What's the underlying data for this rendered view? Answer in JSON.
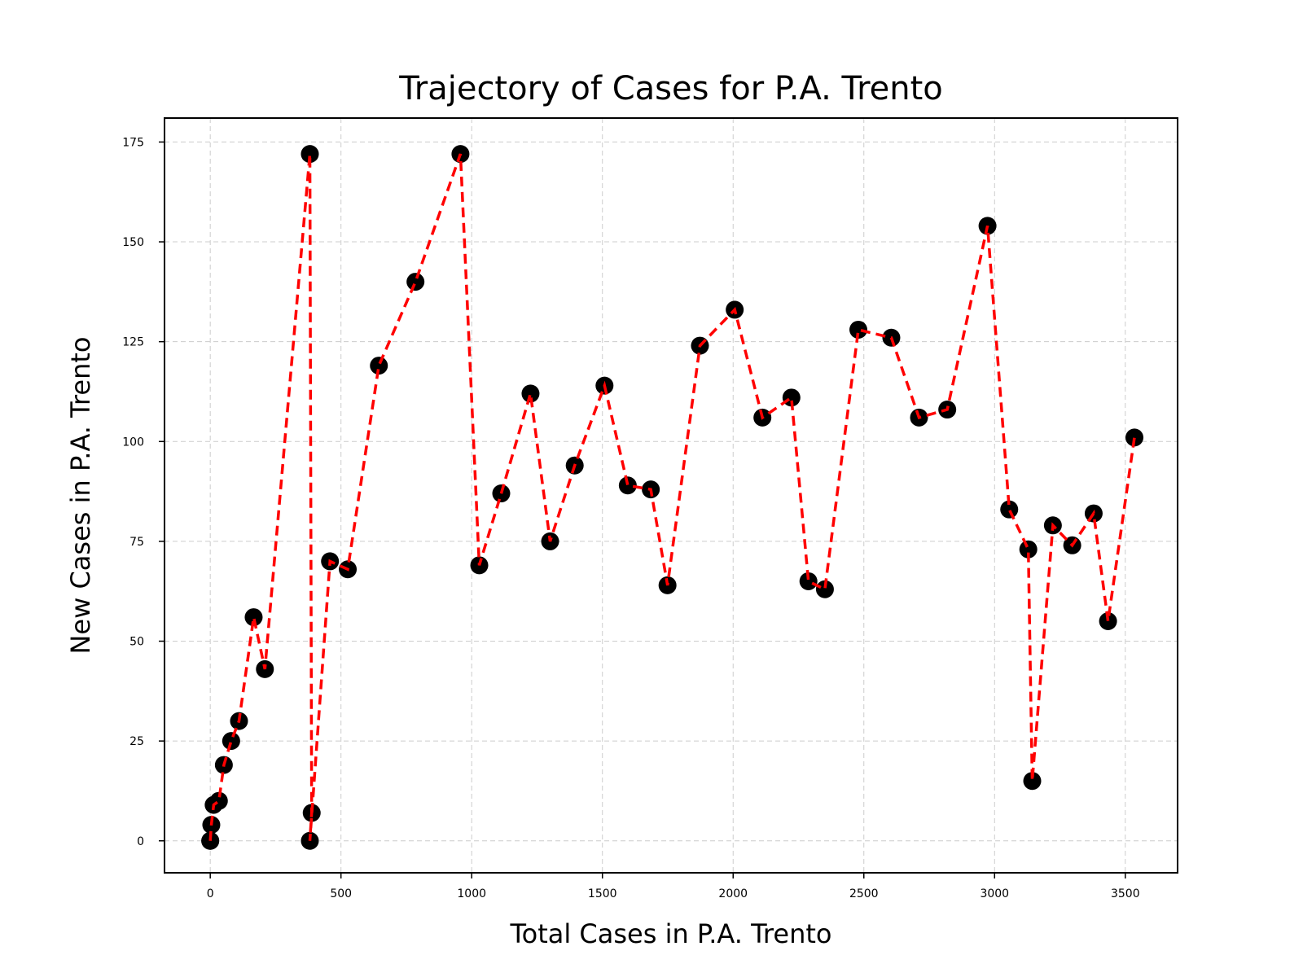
{
  "chart_data": {
    "type": "line",
    "title": "Trajectory of Cases for P.A. Trento",
    "xlabel": "Total Cases in P.A. Trento",
    "ylabel": "New Cases in P.A. Trento",
    "xlim": [
      -175,
      3700
    ],
    "ylim": [
      -8,
      181
    ],
    "xticks": [
      0,
      500,
      1000,
      1500,
      2000,
      2500,
      3000,
      3500
    ],
    "yticks": [
      0,
      25,
      50,
      75,
      100,
      125,
      150,
      175
    ],
    "grid": true,
    "line_color": "#ff0000",
    "line_style": "dashed",
    "marker_color": "#000000",
    "series": [
      {
        "x": [
          0,
          0,
          4,
          13,
          33,
          52,
          80,
          110,
          166,
          209,
          381,
          388,
          381,
          458,
          526,
          645,
          785,
          957,
          1029,
          1113,
          1225,
          1300,
          1394,
          1508,
          1597,
          1685,
          1749,
          1873,
          2006,
          2112,
          2223,
          2288,
          2351,
          2479,
          2605,
          2711,
          2819,
          2973,
          3056,
          3129,
          3144,
          3223,
          3297,
          3379,
          3434,
          3535
        ],
        "y": [
          0,
          0,
          4,
          9,
          10,
          19,
          25,
          30,
          56,
          43,
          172,
          7,
          0,
          70,
          68,
          119,
          140,
          172,
          69,
          87,
          112,
          75,
          94,
          114,
          89,
          88,
          64,
          124,
          133,
          106,
          111,
          65,
          63,
          128,
          126,
          106,
          108,
          154,
          83,
          73,
          15,
          79,
          74,
          82,
          55,
          101
        ]
      }
    ]
  }
}
